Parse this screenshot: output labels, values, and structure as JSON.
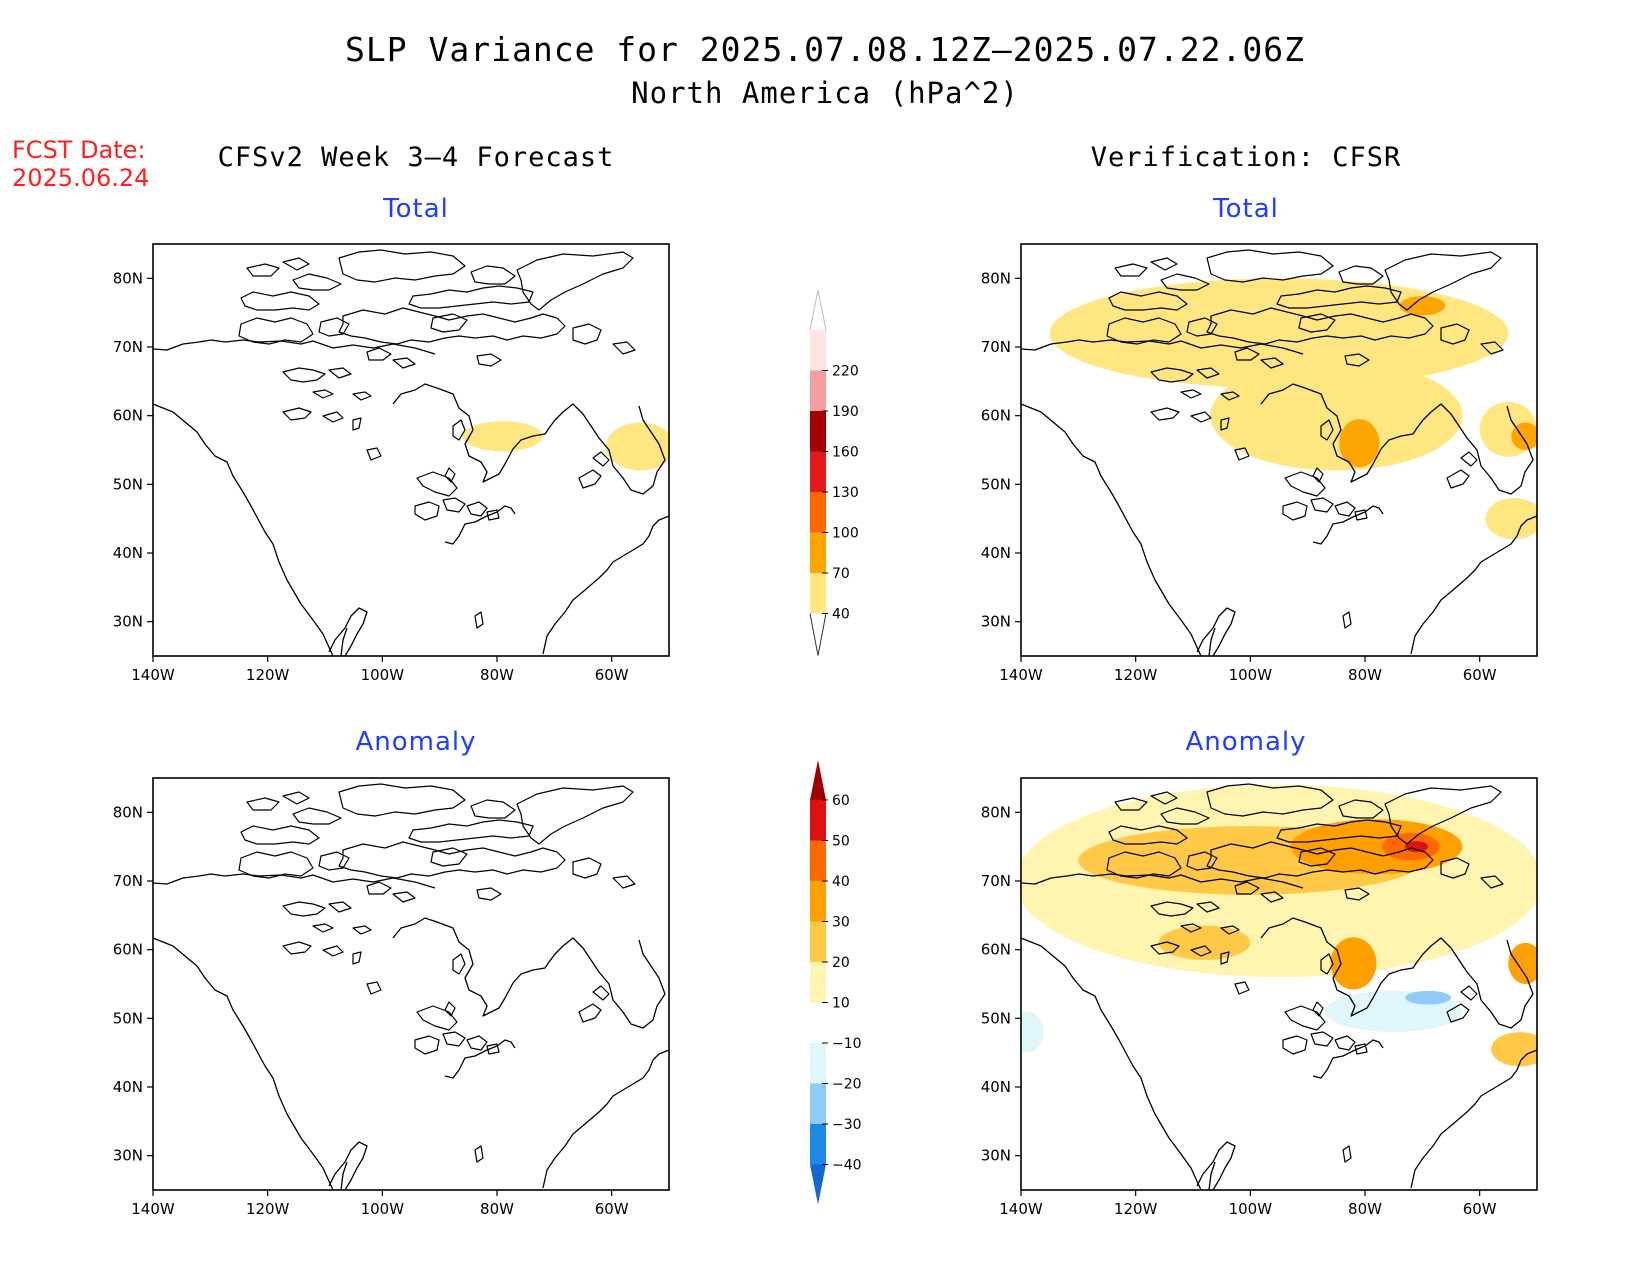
{
  "title": {
    "line1": "SLP Variance for 2025.07.08.12Z–2025.07.22.06Z",
    "line2": "North America (hPa^2)"
  },
  "fcst_date": {
    "label": "FCST Date:",
    "value": "2025.06.24"
  },
  "columns": {
    "left": "CFSv2 Week 3–4 Forecast",
    "right": "Verification: CFSR"
  },
  "panels": {
    "fc_total": {
      "title": "Total"
    },
    "ver_total": {
      "title": "Total"
    },
    "fc_anom": {
      "title": "Anomaly"
    },
    "ver_anom": {
      "title": "Anomaly"
    }
  },
  "axes": {
    "lat_labels": [
      "80N",
      "70N",
      "60N",
      "50N",
      "40N",
      "30N"
    ],
    "lon_labels": [
      "140W",
      "120W",
      "100W",
      "80W",
      "60W"
    ],
    "lat_values": [
      80,
      70,
      60,
      50,
      40,
      30
    ],
    "lon_values": [
      -140,
      -120,
      -100,
      -80,
      -60
    ],
    "lon_range": [
      -140,
      -50
    ],
    "lat_range": [
      25,
      85
    ]
  },
  "colorbar_total": {
    "labels": [
      "40",
      "70",
      "100",
      "130",
      "160",
      "190",
      "220"
    ],
    "colors": [
      "#ffe680",
      "#ffa500",
      "#ff6600",
      "#e41a1a",
      "#a50000",
      "#f29f9f",
      "#fde4e4"
    ]
  },
  "colorbar_anomaly": {
    "labels": [
      "−40",
      "−30",
      "−20",
      "−10",
      "10",
      "20",
      "30",
      "40",
      "50",
      "60"
    ],
    "colors": [
      "#1565d8",
      "#1e88e5",
      "#90caf9",
      "#e0f7fa",
      "#ffffff",
      "#fff5b0",
      "#ffc847",
      "#ffa000",
      "#ff6a00",
      "#e01010",
      "#a00000"
    ]
  },
  "chart_data": [
    {
      "type": "map",
      "panel": "CFSv2 Week 3–4 Forecast — Total",
      "units": "hPa^2",
      "regions": [
        {
          "lon": -79,
          "lat": 57,
          "rx": 7,
          "ry": 2.2,
          "level": "40-70"
        },
        {
          "lon": -55,
          "lat": 55.5,
          "rx": 6,
          "ry": 3.5,
          "level": "40-70"
        }
      ]
    },
    {
      "type": "map",
      "panel": "Verification: CFSR — Total",
      "units": "hPa^2",
      "regions": [
        {
          "lon": -95,
          "lat": 72,
          "rx": 40,
          "ry": 8,
          "level": "40-70"
        },
        {
          "lon": -85,
          "lat": 60,
          "rx": 22,
          "ry": 8,
          "level": "40-70"
        },
        {
          "lon": -55,
          "lat": 58,
          "rx": 5,
          "ry": 4,
          "level": "40-70"
        },
        {
          "lon": -54,
          "lat": 45,
          "rx": 5,
          "ry": 3,
          "level": "40-70"
        },
        {
          "lon": -70,
          "lat": 76,
          "rx": 4,
          "ry": 1.4,
          "level": "70-100"
        },
        {
          "lon": -81,
          "lat": 56,
          "rx": 3.5,
          "ry": 3.5,
          "level": "70-100"
        },
        {
          "lon": -52,
          "lat": 57,
          "rx": 2.5,
          "ry": 2,
          "level": "70-100"
        }
      ]
    },
    {
      "type": "map",
      "panel": "CFSv2 Week 3–4 Forecast — Anomaly",
      "units": "hPa^2",
      "regions": []
    },
    {
      "type": "map",
      "panel": "Verification: CFSR — Anomaly",
      "units": "hPa^2",
      "regions": [
        {
          "lon": -95,
          "lat": 70,
          "rx": 46,
          "ry": 14,
          "level": "10-20"
        },
        {
          "lon": -100,
          "lat": 73,
          "rx": 30,
          "ry": 5,
          "level": "20-30"
        },
        {
          "lon": -78,
          "lat": 75,
          "rx": 15,
          "ry": 4,
          "level": "30-40"
        },
        {
          "lon": -72,
          "lat": 75,
          "rx": 5,
          "ry": 2,
          "level": "40-50"
        },
        {
          "lon": -71,
          "lat": 75,
          "rx": 2,
          "ry": 0.8,
          "level": "50-60"
        },
        {
          "lon": -108,
          "lat": 61,
          "rx": 8,
          "ry": 2.5,
          "level": "20-30"
        },
        {
          "lon": -82,
          "lat": 58,
          "rx": 4,
          "ry": 3.8,
          "level": "30-40"
        },
        {
          "lon": -52,
          "lat": 58,
          "rx": 3,
          "ry": 3,
          "level": "30-40"
        },
        {
          "lon": -53,
          "lat": 45.5,
          "rx": 5,
          "ry": 2.5,
          "level": "20-30"
        },
        {
          "lon": -75,
          "lat": 51,
          "rx": 12,
          "ry": 3,
          "level": "-10 to -20"
        },
        {
          "lon": -69,
          "lat": 53,
          "rx": 4,
          "ry": 1,
          "level": "-20 to -30"
        },
        {
          "lon": -139,
          "lat": 48,
          "rx": 3,
          "ry": 3,
          "level": "-10 to -20"
        }
      ]
    }
  ]
}
